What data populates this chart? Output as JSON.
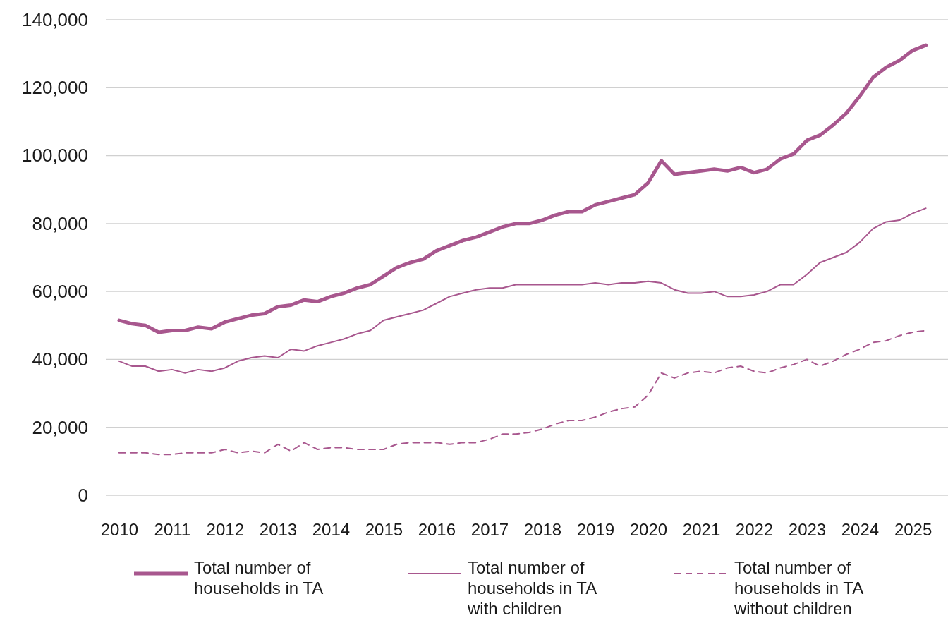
{
  "chart_data": {
    "type": "line",
    "x": [
      "2010-01",
      "2010-04",
      "2010-07",
      "2010-10",
      "2011-01",
      "2011-04",
      "2011-07",
      "2011-10",
      "2012-01",
      "2012-04",
      "2012-07",
      "2012-10",
      "2013-01",
      "2013-04",
      "2013-07",
      "2013-10",
      "2014-01",
      "2014-04",
      "2014-07",
      "2014-10",
      "2015-01",
      "2015-04",
      "2015-07",
      "2015-10",
      "2016-01",
      "2016-04",
      "2016-07",
      "2016-10",
      "2017-01",
      "2017-04",
      "2017-07",
      "2017-10",
      "2018-01",
      "2018-04",
      "2018-07",
      "2018-10",
      "2019-01",
      "2019-04",
      "2019-07",
      "2019-10",
      "2020-01",
      "2020-04",
      "2020-07",
      "2020-10",
      "2021-01",
      "2021-04",
      "2021-07",
      "2021-10",
      "2022-01",
      "2022-04",
      "2022-07",
      "2022-10",
      "2023-01",
      "2023-04",
      "2023-07",
      "2023-10",
      "2024-01",
      "2024-04",
      "2024-07",
      "2024-10",
      "2025-01",
      "2025-04"
    ],
    "series": [
      {
        "name": "Total number of households in TA",
        "color": "#a8578e",
        "line_style": "solid",
        "values": [
          51500,
          50500,
          50000,
          48000,
          48500,
          48500,
          49500,
          49000,
          51000,
          52000,
          53000,
          53500,
          55500,
          56000,
          57500,
          57000,
          58500,
          59500,
          61000,
          62000,
          64500,
          67000,
          68500,
          69500,
          72000,
          73500,
          75000,
          76000,
          77500,
          79000,
          80000,
          80000,
          81000,
          82500,
          83500,
          83500,
          85500,
          86500,
          87500,
          88500,
          92000,
          98500,
          94500,
          95000,
          95500,
          96000,
          95500,
          96500,
          95000,
          96000,
          99000,
          100500,
          104500,
          106000,
          109000,
          112500,
          117500,
          123000,
          126000,
          128000,
          131000,
          132500
        ]
      },
      {
        "name": "Total number of households in TA with children",
        "color": "#a8578e",
        "line_style": "solid",
        "values": [
          39500,
          38000,
          38000,
          36500,
          37000,
          36000,
          37000,
          36500,
          37500,
          39500,
          40500,
          41000,
          40500,
          43000,
          42500,
          44000,
          45000,
          46000,
          47500,
          48500,
          51500,
          52500,
          53500,
          54500,
          56500,
          58500,
          59500,
          60500,
          61000,
          61000,
          62000,
          62000,
          62000,
          62000,
          62000,
          62000,
          62500,
          62000,
          62500,
          62500,
          63000,
          62500,
          60500,
          59500,
          59500,
          60000,
          58500,
          58500,
          59000,
          60000,
          62000,
          62000,
          65000,
          68500,
          70000,
          71500,
          74500,
          78500,
          80500,
          81000,
          83000,
          84500
        ]
      },
      {
        "name": "Total number of households in TA without children",
        "color": "#a8578e",
        "line_style": "dashed",
        "values": [
          12500,
          12500,
          12500,
          12000,
          12000,
          12500,
          12500,
          12500,
          13500,
          12500,
          13000,
          12500,
          15000,
          13000,
          15500,
          13500,
          14000,
          14000,
          13500,
          13500,
          13500,
          15000,
          15500,
          15500,
          15500,
          15000,
          15500,
          15500,
          16500,
          18000,
          18000,
          18500,
          19500,
          21000,
          22000,
          22000,
          23000,
          24500,
          25500,
          26000,
          29500,
          36000,
          34500,
          36000,
          36500,
          36000,
          37500,
          38000,
          36500,
          36000,
          37500,
          38500,
          40000,
          38000,
          39500,
          41500,
          43000,
          45000,
          45500,
          47000,
          48000,
          48500
        ]
      }
    ],
    "xlim": [
      "2009-10",
      "2025-09"
    ],
    "xticks": [
      "2010",
      "2011",
      "2012",
      "2013",
      "2014",
      "2015",
      "2016",
      "2017",
      "2018",
      "2019",
      "2020",
      "2021",
      "2022",
      "2023",
      "2024",
      "2025"
    ],
    "ylim": [
      0,
      140000
    ],
    "yticks": [
      {
        "value": 0,
        "label": "0"
      },
      {
        "value": 20000,
        "label": "20,000"
      },
      {
        "value": 40000,
        "label": "40,000"
      },
      {
        "value": 60000,
        "label": "60,000"
      },
      {
        "value": 80000,
        "label": "80,000"
      },
      {
        "value": 100000,
        "label": "100,000"
      },
      {
        "value": 120000,
        "label": "120,000"
      },
      {
        "value": 140000,
        "label": "140,000"
      }
    ],
    "grid": "y",
    "legend": "bottom",
    "marker": "none"
  }
}
